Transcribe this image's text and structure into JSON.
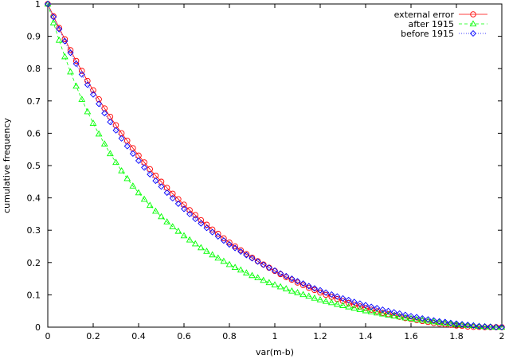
{
  "chart_data": {
    "type": "line",
    "xlabel": "var(m-b)",
    "ylabel": "cumulative frequency",
    "xlim": [
      0,
      2
    ],
    "ylim": [
      0,
      1
    ],
    "x_ticks": [
      "0",
      "0.2",
      "0.4",
      "0.6",
      "0.8",
      "1",
      "1.2",
      "1.4",
      "1.6",
      "1.8",
      "2"
    ],
    "y_ticks": [
      "0",
      "0.1",
      "0.2",
      "0.3",
      "0.4",
      "0.5",
      "0.6",
      "0.7",
      "0.8",
      "0.9",
      "1"
    ],
    "grid": false,
    "legend_position": "top-right",
    "x": [
      0.0,
      0.025,
      0.05,
      0.075,
      0.1,
      0.125,
      0.15,
      0.175,
      0.2,
      0.225,
      0.25,
      0.275,
      0.3,
      0.325,
      0.35,
      0.375,
      0.4,
      0.425,
      0.45,
      0.475,
      0.5,
      0.525,
      0.55,
      0.575,
      0.6,
      0.625,
      0.65,
      0.675,
      0.7,
      0.725,
      0.75,
      0.775,
      0.8,
      0.825,
      0.85,
      0.875,
      0.9,
      0.925,
      0.95,
      0.975,
      1.0,
      1.025,
      1.05,
      1.075,
      1.1,
      1.125,
      1.15,
      1.175,
      1.2,
      1.225,
      1.25,
      1.275,
      1.3,
      1.325,
      1.35,
      1.375,
      1.4,
      1.425,
      1.45,
      1.475,
      1.5,
      1.525,
      1.55,
      1.575,
      1.6,
      1.625,
      1.65,
      1.675,
      1.7,
      1.725,
      1.75,
      1.775,
      1.8,
      1.825,
      1.85,
      1.875,
      1.9,
      1.925,
      1.95,
      1.975,
      2.0
    ],
    "series": [
      {
        "name": "external error",
        "color": "#ff0000",
        "marker": "circle",
        "line_style": "solid",
        "values": [
          1.0,
          0.962,
          0.926,
          0.891,
          0.857,
          0.824,
          0.793,
          0.762,
          0.733,
          0.705,
          0.677,
          0.651,
          0.625,
          0.6,
          0.577,
          0.554,
          0.531,
          0.51,
          0.489,
          0.469,
          0.45,
          0.431,
          0.413,
          0.396,
          0.379,
          0.362,
          0.347,
          0.331,
          0.317,
          0.302,
          0.289,
          0.275,
          0.262,
          0.25,
          0.238,
          0.226,
          0.215,
          0.204,
          0.194,
          0.184,
          0.174,
          0.164,
          0.155,
          0.147,
          0.138,
          0.13,
          0.122,
          0.115,
          0.107,
          0.1,
          0.094,
          0.087,
          0.081,
          0.075,
          0.069,
          0.064,
          0.059,
          0.054,
          0.049,
          0.044,
          0.04,
          0.036,
          0.032,
          0.028,
          0.025,
          0.022,
          0.019,
          0.016,
          0.013,
          0.011,
          0.009,
          0.007,
          0.005,
          0.004,
          0.002,
          0.001,
          0.001,
          0.0,
          0.0,
          0.0,
          0.0
        ]
      },
      {
        "name": "after 1915",
        "color": "#00ff00",
        "marker": "triangle",
        "line_style": "dashed",
        "values": [
          1.0,
          0.942,
          0.888,
          0.837,
          0.79,
          0.746,
          0.705,
          0.667,
          0.631,
          0.598,
          0.567,
          0.537,
          0.51,
          0.484,
          0.46,
          0.437,
          0.416,
          0.396,
          0.377,
          0.359,
          0.342,
          0.326,
          0.311,
          0.297,
          0.283,
          0.27,
          0.258,
          0.246,
          0.235,
          0.224,
          0.214,
          0.204,
          0.194,
          0.185,
          0.177,
          0.168,
          0.16,
          0.153,
          0.145,
          0.138,
          0.131,
          0.125,
          0.119,
          0.112,
          0.107,
          0.101,
          0.096,
          0.09,
          0.085,
          0.08,
          0.076,
          0.071,
          0.067,
          0.063,
          0.059,
          0.055,
          0.051,
          0.048,
          0.044,
          0.041,
          0.038,
          0.035,
          0.032,
          0.029,
          0.027,
          0.024,
          0.022,
          0.019,
          0.017,
          0.015,
          0.013,
          0.011,
          0.009,
          0.008,
          0.006,
          0.005,
          0.003,
          0.002,
          0.001,
          0.0,
          0.0
        ]
      },
      {
        "name": "before 1915",
        "color": "#0000ff",
        "marker": "diamond",
        "line_style": "dotted",
        "values": [
          1.0,
          0.96,
          0.922,
          0.885,
          0.849,
          0.815,
          0.782,
          0.75,
          0.72,
          0.691,
          0.662,
          0.635,
          0.609,
          0.584,
          0.56,
          0.537,
          0.515,
          0.494,
          0.473,
          0.453,
          0.435,
          0.416,
          0.399,
          0.382,
          0.366,
          0.35,
          0.335,
          0.321,
          0.307,
          0.294,
          0.281,
          0.268,
          0.256,
          0.245,
          0.234,
          0.223,
          0.213,
          0.203,
          0.193,
          0.184,
          0.175,
          0.166,
          0.158,
          0.15,
          0.142,
          0.135,
          0.127,
          0.12,
          0.114,
          0.107,
          0.101,
          0.095,
          0.089,
          0.084,
          0.078,
          0.073,
          0.068,
          0.063,
          0.059,
          0.054,
          0.05,
          0.046,
          0.042,
          0.038,
          0.034,
          0.031,
          0.027,
          0.024,
          0.021,
          0.018,
          0.016,
          0.013,
          0.011,
          0.009,
          0.007,
          0.005,
          0.003,
          0.002,
          0.001,
          0.0,
          0.0
        ]
      }
    ]
  }
}
